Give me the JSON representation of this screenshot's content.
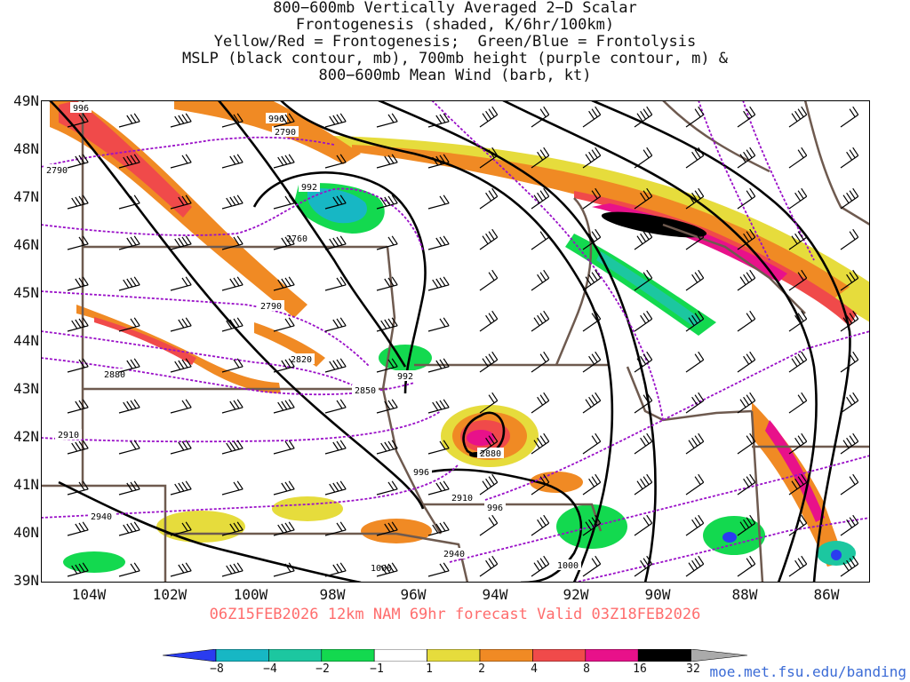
{
  "title_lines": [
    "800−600mb Vertically Averaged 2−D Scalar",
    "Frontogenesis (shaded, K/6hr/100km)",
    "Yellow/Red = Frontogenesis;  Green/Blue = Frontolysis",
    "MSLP (black contour, mb), 700mb height (purple contour, m) &",
    "800−600mb Mean Wind (barb, kt)"
  ],
  "valid_line": "06Z15FEB2026 12km NAM 69hr forecast Valid 03Z18FEB2026",
  "credit": "moe.met.fsu.edu/banding",
  "latitudes": [
    "49N",
    "48N",
    "47N",
    "46N",
    "45N",
    "44N",
    "43N",
    "42N",
    "41N",
    "40N",
    "39N"
  ],
  "longitudes": [
    "104W",
    "102W",
    "100W",
    "98W",
    "96W",
    "94W",
    "92W",
    "90W",
    "88W",
    "86W"
  ],
  "colorbar": {
    "labels": [
      "−8",
      "−4",
      "−2",
      "−1",
      "1",
      "2",
      "4",
      "8",
      "16",
      "32"
    ],
    "colors": [
      "#2a3cf0",
      "#17b7c4",
      "#1cc7a0",
      "#13d94f",
      "#ffffff",
      "#e6dc3c",
      "#f08a24",
      "#f04a4a",
      "#e8118a",
      "#000000",
      "#aaaaaa"
    ]
  },
  "contour_labels": {
    "mslp": [
      "996",
      "996",
      "992",
      "992",
      "996",
      "996",
      "1000",
      "1000"
    ],
    "height": [
      "2790",
      "2790",
      "2760",
      "2790",
      "2820",
      "2850",
      "2880",
      "2880",
      "2910",
      "2910",
      "2940",
      "2940"
    ]
  },
  "colors": {
    "mslp": "#000000",
    "height": "#9a10c8",
    "borders": "#6e5a4f",
    "valid_text": "#ff6d6d",
    "credit_text": "#3b6bd6"
  }
}
